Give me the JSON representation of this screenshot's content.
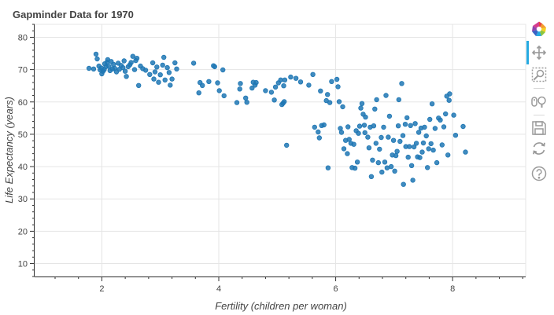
{
  "chart_data": {
    "type": "scatter",
    "title": "Gapminder Data for 1970",
    "xlabel": "Fertility (children per woman)",
    "ylabel": "Life Expectancy (years)",
    "xlim": [
      0.85,
      9.25
    ],
    "ylim": [
      6,
      84
    ],
    "xticks": [
      2,
      4,
      6,
      8
    ],
    "yticks": [
      10,
      20,
      30,
      40,
      50,
      60,
      70,
      80
    ],
    "grid": true,
    "point_color": "#1f77b4",
    "points": [
      [
        1.78,
        70.4
      ],
      [
        1.86,
        70.2
      ],
      [
        1.9,
        74.8
      ],
      [
        1.92,
        73.3
      ],
      [
        1.95,
        71.1
      ],
      [
        1.97,
        69.9
      ],
      [
        1.99,
        70.5
      ],
      [
        2.0,
        68.7
      ],
      [
        2.02,
        69.5
      ],
      [
        2.04,
        70.0
      ],
      [
        2.05,
        71.8
      ],
      [
        2.07,
        70.9
      ],
      [
        2.09,
        72.3
      ],
      [
        2.1,
        73.1
      ],
      [
        2.12,
        71.0
      ],
      [
        2.14,
        69.7
      ],
      [
        2.16,
        72.5
      ],
      [
        2.18,
        70.2
      ],
      [
        2.2,
        71.6
      ],
      [
        2.22,
        70.4
      ],
      [
        2.25,
        69.3
      ],
      [
        2.28,
        72.0
      ],
      [
        2.3,
        70.1
      ],
      [
        2.33,
        71.3
      ],
      [
        2.36,
        70.6
      ],
      [
        2.38,
        72.7
      ],
      [
        2.4,
        69.5
      ],
      [
        2.42,
        67.9
      ],
      [
        2.45,
        70.9
      ],
      [
        2.48,
        71.5
      ],
      [
        2.5,
        72.2
      ],
      [
        2.53,
        74.1
      ],
      [
        2.56,
        70.0
      ],
      [
        2.58,
        72.8
      ],
      [
        2.6,
        73.5
      ],
      [
        2.63,
        65.1
      ],
      [
        2.66,
        71.1
      ],
      [
        2.7,
        70.3
      ],
      [
        2.75,
        69.8
      ],
      [
        2.82,
        68.5
      ],
      [
        2.87,
        72.1
      ],
      [
        2.89,
        67.1
      ],
      [
        2.91,
        69.3
      ],
      [
        2.94,
        70.8
      ],
      [
        2.97,
        66.1
      ],
      [
        3.0,
        68.4
      ],
      [
        3.04,
        71.4
      ],
      [
        3.06,
        73.8
      ],
      [
        3.08,
        66.8
      ],
      [
        3.12,
        70.6
      ],
      [
        3.15,
        69.1
      ],
      [
        3.17,
        65.2
      ],
      [
        3.2,
        67.1
      ],
      [
        3.25,
        72.1
      ],
      [
        3.28,
        70.2
      ],
      [
        3.57,
        72.0
      ],
      [
        3.66,
        62.8
      ],
      [
        3.68,
        66.0
      ],
      [
        3.72,
        65.1
      ],
      [
        3.83,
        66.3
      ],
      [
        3.91,
        71.2
      ],
      [
        3.93,
        70.9
      ],
      [
        3.98,
        65.9
      ],
      [
        4.01,
        63.5
      ],
      [
        4.07,
        69.9
      ],
      [
        4.09,
        61.9
      ],
      [
        4.31,
        59.8
      ],
      [
        4.36,
        64.0
      ],
      [
        4.37,
        65.7
      ],
      [
        4.46,
        61.2
      ],
      [
        4.48,
        59.9
      ],
      [
        4.57,
        64.3
      ],
      [
        4.59,
        66.1
      ],
      [
        4.62,
        65.2
      ],
      [
        4.64,
        66.0
      ],
      [
        4.8,
        63.5
      ],
      [
        4.9,
        63.0
      ],
      [
        4.95,
        60.6
      ],
      [
        4.97,
        64.6
      ],
      [
        5.02,
        65.9
      ],
      [
        5.06,
        66.8
      ],
      [
        5.08,
        59.2
      ],
      [
        5.1,
        59.6
      ],
      [
        5.11,
        65.0
      ],
      [
        5.12,
        60.1
      ],
      [
        5.13,
        66.8
      ],
      [
        5.16,
        46.6
      ],
      [
        5.23,
        67.7
      ],
      [
        5.32,
        67.3
      ],
      [
        5.4,
        66.2
      ],
      [
        5.54,
        65.2
      ],
      [
        5.61,
        68.5
      ],
      [
        5.64,
        52.2
      ],
      [
        5.7,
        50.7
      ],
      [
        5.72,
        48.9
      ],
      [
        5.74,
        63.4
      ],
      [
        5.76,
        52.7
      ],
      [
        5.8,
        52.9
      ],
      [
        5.84,
        60.4
      ],
      [
        5.86,
        62.3
      ],
      [
        5.87,
        39.6
      ],
      [
        5.9,
        59.8
      ],
      [
        5.93,
        66.3
      ],
      [
        6.02,
        67.0
      ],
      [
        6.04,
        64.7
      ],
      [
        6.06,
        60.1
      ],
      [
        6.08,
        51.8
      ],
      [
        6.1,
        50.6
      ],
      [
        6.12,
        58.5
      ],
      [
        6.14,
        45.5
      ],
      [
        6.17,
        48.1
      ],
      [
        6.2,
        44.0
      ],
      [
        6.21,
        52.3
      ],
      [
        6.23,
        48.4
      ],
      [
        6.26,
        47.2
      ],
      [
        6.28,
        39.7
      ],
      [
        6.31,
        46.9
      ],
      [
        6.33,
        39.5
      ],
      [
        6.35,
        51.1
      ],
      [
        6.37,
        41.4
      ],
      [
        6.39,
        50.3
      ],
      [
        6.41,
        52.5
      ],
      [
        6.43,
        58.1
      ],
      [
        6.45,
        59.5
      ],
      [
        6.47,
        56.2
      ],
      [
        6.49,
        52.8
      ],
      [
        6.5,
        50.5
      ],
      [
        6.51,
        55.3
      ],
      [
        6.55,
        49.1
      ],
      [
        6.57,
        45.8
      ],
      [
        6.59,
        52.2
      ],
      [
        6.61,
        36.9
      ],
      [
        6.63,
        42.0
      ],
      [
        6.65,
        52.6
      ],
      [
        6.67,
        57.8
      ],
      [
        6.69,
        47.2
      ],
      [
        6.7,
        60.7
      ],
      [
        6.73,
        41.2
      ],
      [
        6.75,
        45.4
      ],
      [
        6.78,
        49.0
      ],
      [
        6.79,
        38.3
      ],
      [
        6.82,
        52.2
      ],
      [
        6.84,
        41.4
      ],
      [
        6.86,
        62.0
      ],
      [
        6.88,
        39.6
      ],
      [
        6.9,
        49.1
      ],
      [
        6.92,
        55.6
      ],
      [
        6.95,
        40.0
      ],
      [
        6.97,
        43.6
      ],
      [
        6.99,
        48.1
      ],
      [
        7.01,
        38.6
      ],
      [
        7.03,
        43.4
      ],
      [
        7.05,
        44.7
      ],
      [
        7.07,
        52.6
      ],
      [
        7.08,
        60.7
      ],
      [
        7.1,
        47.8
      ],
      [
        7.13,
        65.7
      ],
      [
        7.15,
        49.6
      ],
      [
        7.16,
        34.5
      ],
      [
        7.19,
        53.1
      ],
      [
        7.2,
        46.2
      ],
      [
        7.22,
        55.1
      ],
      [
        7.24,
        42.9
      ],
      [
        7.26,
        46.2
      ],
      [
        7.28,
        52.7
      ],
      [
        7.3,
        40.3
      ],
      [
        7.32,
        35.8
      ],
      [
        7.34,
        46.1
      ],
      [
        7.36,
        53.3
      ],
      [
        7.38,
        47.2
      ],
      [
        7.4,
        43.0
      ],
      [
        7.42,
        50.6
      ],
      [
        7.44,
        42.8
      ],
      [
        7.46,
        51.9
      ],
      [
        7.48,
        44.5
      ],
      [
        7.5,
        47.3
      ],
      [
        7.52,
        52.2
      ],
      [
        7.55,
        49.5
      ],
      [
        7.57,
        39.7
      ],
      [
        7.59,
        45.5
      ],
      [
        7.61,
        54.6
      ],
      [
        7.63,
        47.1
      ],
      [
        7.65,
        59.4
      ],
      [
        7.67,
        45.1
      ],
      [
        7.7,
        51.8
      ],
      [
        7.73,
        41.2
      ],
      [
        7.76,
        55.0
      ],
      [
        7.79,
        54.4
      ],
      [
        7.82,
        46.7
      ],
      [
        7.85,
        52.3
      ],
      [
        7.88,
        56.3
      ],
      [
        7.9,
        61.8
      ],
      [
        7.92,
        43.6
      ],
      [
        7.94,
        60.5
      ],
      [
        7.95,
        62.5
      ],
      [
        8.02,
        55.9
      ],
      [
        8.05,
        49.7
      ],
      [
        8.18,
        52.4
      ],
      [
        8.22,
        44.5
      ]
    ]
  },
  "toolbar": {
    "tools": [
      {
        "name": "bokeh-logo-icon"
      },
      {
        "name": "pan-tool-icon"
      },
      {
        "name": "box-zoom-tool-icon"
      },
      {
        "name": "wheel-zoom-tool-icon"
      },
      {
        "name": "save-tool-icon"
      },
      {
        "name": "reset-tool-icon"
      },
      {
        "name": "help-tool-icon"
      }
    ]
  }
}
